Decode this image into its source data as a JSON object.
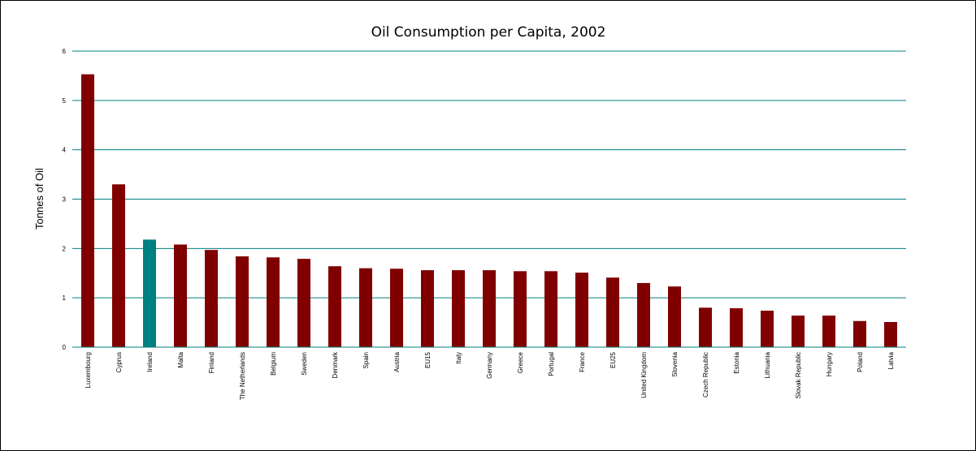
{
  "chart_data": {
    "type": "bar",
    "title": "Oil Consumption per Capita, 2002",
    "xlabel": "",
    "ylabel": "Tonnes of Oil",
    "ylim": [
      0,
      6
    ],
    "yticks": [
      0,
      1,
      2,
      3,
      4,
      5,
      6
    ],
    "grid": true,
    "legend": "none",
    "colors": {
      "default": "#800000",
      "highlight": "#008080",
      "grid": "#008080",
      "axis": "#008080"
    },
    "highlight": "Ireland",
    "categories": [
      "Luxembourg",
      "Cyprus",
      "Ireland",
      "Malta",
      "Finland",
      "The Netherlands",
      "Belgium",
      "Sweden",
      "Denmark",
      "Spain",
      "Austria",
      "EU15",
      "Italy",
      "Germany",
      "Greece",
      "Portugal",
      "France",
      "EU25",
      "United Kingdom",
      "Slovenia",
      "Czech Republic",
      "Estonia",
      "Lithuania",
      "Slovak Republic",
      "Hungary",
      "Poland",
      "Latvia"
    ],
    "values": [
      5.53,
      3.3,
      2.18,
      2.08,
      1.97,
      1.84,
      1.82,
      1.79,
      1.64,
      1.6,
      1.59,
      1.56,
      1.56,
      1.56,
      1.54,
      1.54,
      1.51,
      1.41,
      1.3,
      1.23,
      0.8,
      0.79,
      0.74,
      0.64,
      0.64,
      0.53,
      0.51
    ]
  }
}
